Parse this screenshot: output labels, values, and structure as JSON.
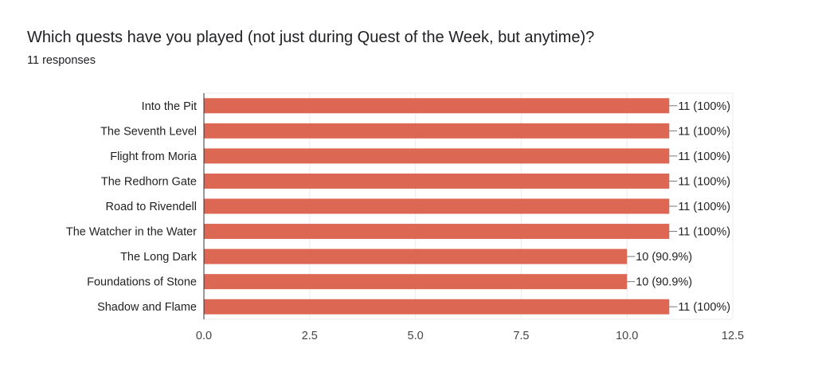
{
  "chart_data": {
    "type": "bar",
    "orientation": "horizontal",
    "title": "Which quests have you played (not just during Quest of the Week, but anytime)?",
    "subtitle": "11 responses",
    "categories": [
      "Into the Pit",
      "The Seventh Level",
      "Flight from Moria",
      "The Redhorn Gate",
      "Road to Rivendell",
      "The Watcher in the Water",
      "The Long Dark",
      "Foundations of Stone",
      "Shadow and Flame"
    ],
    "values": [
      11,
      11,
      11,
      11,
      11,
      11,
      10,
      10,
      11
    ],
    "data_labels": [
      "11 (100%)",
      "11 (100%)",
      "11 (100%)",
      "11 (100%)",
      "11 (100%)",
      "11 (100%)",
      "10 (90.9%)",
      "10 (90.9%)",
      "11 (100%)"
    ],
    "xticks": [
      "0.0",
      "2.5",
      "5.0",
      "7.5",
      "10.0",
      "12.5"
    ],
    "xlim": [
      0,
      12.5
    ],
    "grid": true,
    "bar_color": "#dc6753"
  }
}
